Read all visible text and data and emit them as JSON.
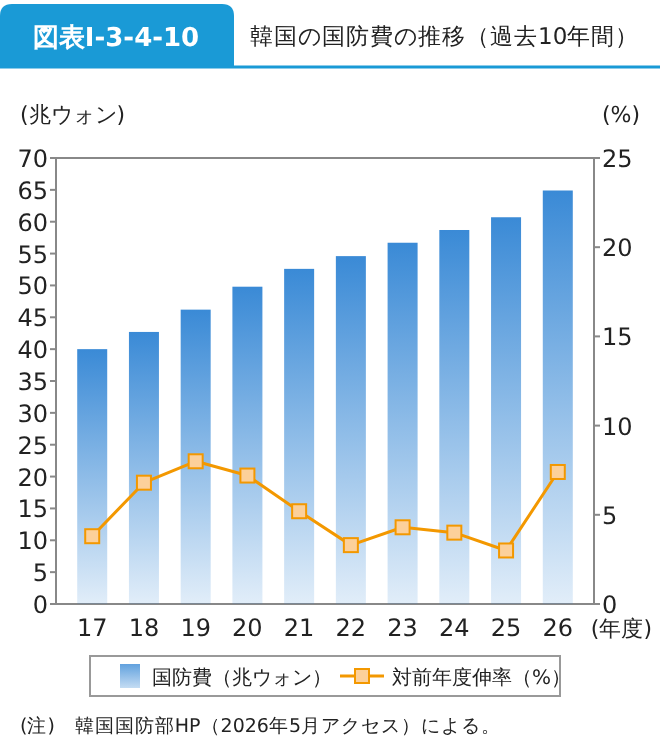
{
  "chart_data": {
    "type": "bar",
    "title": "図表Ⅰ-3-4-10",
    "subtitle": "韓国の国防費の推移（過去10年間）",
    "xlabel": "(年度)",
    "ylabel": "(兆ウォン)",
    "y2label": "(%)",
    "categories": [
      "17",
      "18",
      "19",
      "20",
      "21",
      "22",
      "23",
      "24",
      "25",
      "26"
    ],
    "series": [
      {
        "name": "国防費（兆ウォン）",
        "color": "#3a8ad6",
        "values": [
          40.0,
          42.7,
          46.2,
          49.8,
          52.6,
          54.6,
          56.7,
          58.7,
          60.7,
          64.9
        ]
      },
      {
        "name": "対前年度伸率（%）",
        "type": "line",
        "axis": "y2",
        "color": "#f39800",
        "marker": "square",
        "values": [
          3.8,
          6.8,
          8.0,
          7.2,
          5.2,
          3.3,
          4.3,
          4.0,
          3.0,
          7.4
        ]
      }
    ],
    "ylim": [
      0,
      70
    ],
    "yticks": [
      0,
      5,
      10,
      15,
      20,
      25,
      30,
      35,
      40,
      45,
      50,
      55,
      60,
      65,
      70
    ],
    "y2lim": [
      0,
      25
    ],
    "y2ticks": [
      0,
      5,
      10,
      15,
      20,
      25
    ],
    "legend": "bottom",
    "annotations": [
      "(注)　韓国国防部HP（2026年5月アクセス）による。"
    ]
  }
}
